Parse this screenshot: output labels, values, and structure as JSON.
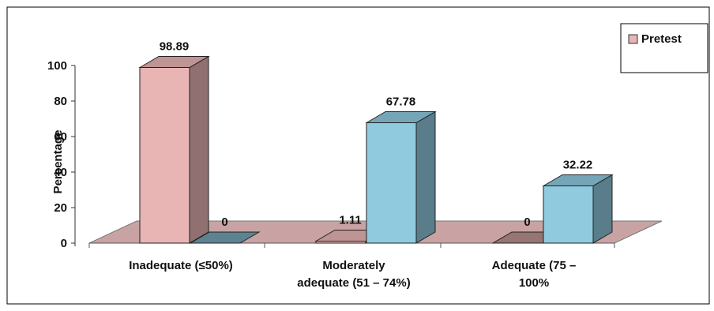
{
  "chart_data": {
    "type": "bar",
    "categories": [
      "Inadequate (≤50%)",
      "Moderately adequate (51 – 74%)",
      "Adequate (75 – 100%"
    ],
    "category_lines": [
      [
        "Inadequate (≤50%)"
      ],
      [
        "Moderately",
        "adequate (51 – 74%)"
      ],
      [
        "Adequate (75 –",
        "100%"
      ]
    ],
    "series": [
      {
        "name": "Pretest",
        "values": [
          98.89,
          1.11,
          0
        ],
        "labels": [
          "98.89",
          "1.11",
          "0"
        ],
        "color": "#E8B4B4"
      },
      {
        "name": "",
        "values": [
          0,
          67.78,
          32.22
        ],
        "labels": [
          "0",
          "67.78",
          "32.22"
        ],
        "color": "#8FCADF"
      }
    ],
    "title": "",
    "xlabel": "",
    "ylabel": "Percentage",
    "ylim": [
      0,
      100
    ],
    "yticks": [
      "0",
      "20",
      "40",
      "60",
      "80",
      "100"
    ],
    "grid": false,
    "legend": {
      "position": "top-right",
      "entries": [
        "Pretest"
      ]
    },
    "floor_color": "#C9A3A3"
  }
}
